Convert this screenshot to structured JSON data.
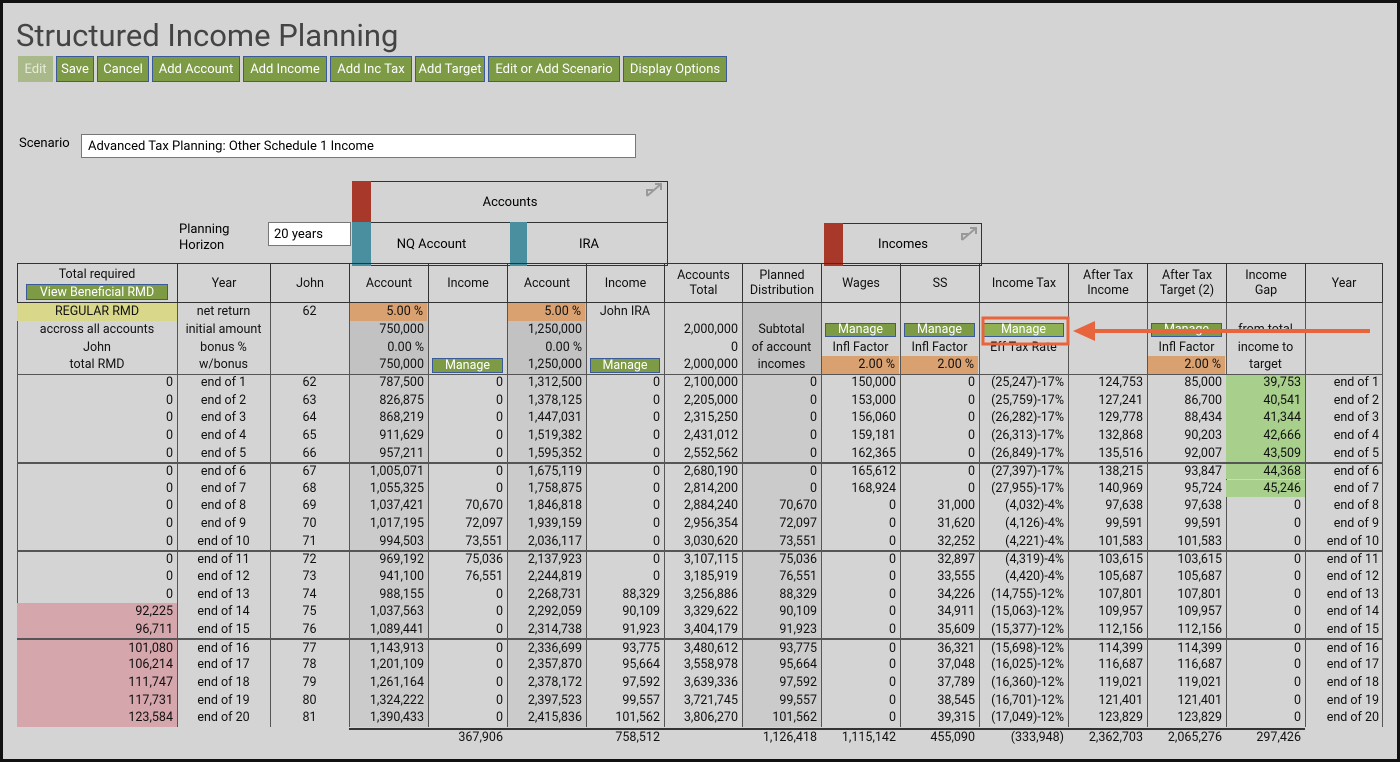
{
  "title": "Structured Income Planning",
  "buttons": [
    "Edit",
    "Save",
    "Cancel",
    "Add Account",
    "Add Income",
    "Add Inc Tax",
    "Add Target",
    "Edit or Add Scenario",
    "Display Options"
  ],
  "scenario": {
    "label": "Scenario",
    "value": "Advanced Tax Planning: Other Schedule 1 Income"
  },
  "planning_horizon": {
    "label": "Planning Horizon",
    "value": "20 years"
  },
  "groups": {
    "accounts": "Accounts",
    "nq": "NQ Account",
    "ira": "IRA",
    "incomes": "Incomes"
  },
  "table": {
    "header": [
      "Total required",
      "Year",
      "John",
      "Account",
      "Income",
      "Account",
      "Income",
      "Accounts\nTotal",
      "Planned\nDistribution",
      "Wages",
      "SS",
      "Income Tax",
      "After Tax\nIncome",
      "After Tax\nTarget (2)",
      "Income\nGap",
      "Year"
    ],
    "view_rmd_button": "View Beneficial RMD",
    "setup_rows": [
      [
        "REGULAR RMD",
        "net return",
        "62",
        "5.00 %",
        null,
        "5.00 %",
        "John IRA",
        null,
        null,
        null,
        null,
        null,
        null,
        null,
        null,
        null
      ],
      [
        "accross all accounts",
        "initial amount",
        null,
        "750,000",
        null,
        "1,250,000",
        null,
        "2,000,000",
        "Subtotal",
        "Manage",
        "Manage",
        "Manage",
        null,
        "Manage",
        "from total",
        null
      ],
      [
        "John",
        "bonus %",
        null,
        "0.00 %",
        null,
        "0.00 %",
        null,
        "0",
        "of account",
        "Infl Factor",
        "Infl Factor",
        "Eff Tax Rate",
        null,
        "Infl Factor",
        "income to",
        null
      ],
      [
        "total RMD",
        "w/bonus",
        null,
        "750,000",
        "Manage",
        "1,250,000",
        "Manage",
        "2,000,000",
        "incomes",
        "2.00 %",
        "2.00 %",
        null,
        null,
        "2.00 %",
        "target",
        null
      ]
    ],
    "rows": [
      [
        "0",
        "end of 1",
        "62",
        "787,500",
        "0",
        "1,312,500",
        "0",
        "2,100,000",
        "0",
        "150,000",
        "0",
        "(25,247)-17%",
        "124,753",
        "85,000",
        "39,753",
        "end of 1"
      ],
      [
        "0",
        "end of 2",
        "63",
        "826,875",
        "0",
        "1,378,125",
        "0",
        "2,205,000",
        "0",
        "153,000",
        "0",
        "(25,759)-17%",
        "127,241",
        "86,700",
        "40,541",
        "end of 2"
      ],
      [
        "0",
        "end of 3",
        "64",
        "868,219",
        "0",
        "1,447,031",
        "0",
        "2,315,250",
        "0",
        "156,060",
        "0",
        "(26,282)-17%",
        "129,778",
        "88,434",
        "41,344",
        "end of 3"
      ],
      [
        "0",
        "end of 4",
        "65",
        "911,629",
        "0",
        "1,519,382",
        "0",
        "2,431,012",
        "0",
        "159,181",
        "0",
        "(26,313)-17%",
        "132,868",
        "90,203",
        "42,666",
        "end of 4"
      ],
      [
        "0",
        "end of 5",
        "66",
        "957,211",
        "0",
        "1,595,352",
        "0",
        "2,552,562",
        "0",
        "162,365",
        "0",
        "(26,849)-17%",
        "135,516",
        "92,007",
        "43,509",
        "end of 5"
      ],
      [
        "0",
        "end of 6",
        "67",
        "1,005,071",
        "0",
        "1,675,119",
        "0",
        "2,680,190",
        "0",
        "165,612",
        "0",
        "(27,397)-17%",
        "138,215",
        "93,847",
        "44,368",
        "end of 6"
      ],
      [
        "0",
        "end of 7",
        "68",
        "1,055,325",
        "0",
        "1,758,875",
        "0",
        "2,814,200",
        "0",
        "168,924",
        "0",
        "(27,955)-17%",
        "140,969",
        "95,724",
        "45,246",
        "end of 7"
      ],
      [
        "0",
        "end of 8",
        "69",
        "1,037,421",
        "70,670",
        "1,846,818",
        "0",
        "2,884,240",
        "70,670",
        "0",
        "31,000",
        "(4,032)-4%",
        "97,638",
        "97,638",
        "0",
        "end of 8"
      ],
      [
        "0",
        "end of 9",
        "70",
        "1,017,195",
        "72,097",
        "1,939,159",
        "0",
        "2,956,354",
        "72,097",
        "0",
        "31,620",
        "(4,126)-4%",
        "99,591",
        "99,591",
        "0",
        "end of 9"
      ],
      [
        "0",
        "end of 10",
        "71",
        "994,503",
        "73,551",
        "2,036,117",
        "0",
        "3,030,620",
        "73,551",
        "0",
        "32,252",
        "(4,221)-4%",
        "101,583",
        "101,583",
        "0",
        "end of 10"
      ],
      [
        "0",
        "end of 11",
        "72",
        "969,192",
        "75,036",
        "2,137,923",
        "0",
        "3,107,115",
        "75,036",
        "0",
        "32,897",
        "(4,319)-4%",
        "103,615",
        "103,615",
        "0",
        "end of 11"
      ],
      [
        "0",
        "end of 12",
        "73",
        "941,100",
        "76,551",
        "2,244,819",
        "0",
        "3,185,919",
        "76,551",
        "0",
        "33,555",
        "(4,420)-4%",
        "105,687",
        "105,687",
        "0",
        "end of 12"
      ],
      [
        "0",
        "end of 13",
        "74",
        "988,155",
        "0",
        "2,268,731",
        "88,329",
        "3,256,886",
        "88,329",
        "0",
        "34,226",
        "(14,755)-12%",
        "107,801",
        "107,801",
        "0",
        "end of 13"
      ],
      [
        "92,225",
        "end of 14",
        "75",
        "1,037,563",
        "0",
        "2,292,059",
        "90,109",
        "3,329,622",
        "90,109",
        "0",
        "34,911",
        "(15,063)-12%",
        "109,957",
        "109,957",
        "0",
        "end of 14"
      ],
      [
        "96,711",
        "end of 15",
        "76",
        "1,089,441",
        "0",
        "2,314,738",
        "91,923",
        "3,404,179",
        "91,923",
        "0",
        "35,609",
        "(15,377)-12%",
        "112,156",
        "112,156",
        "0",
        "end of 15"
      ],
      [
        "101,080",
        "end of 16",
        "77",
        "1,143,913",
        "0",
        "2,336,699",
        "93,775",
        "3,480,612",
        "93,775",
        "0",
        "36,321",
        "(15,698)-12%",
        "114,399",
        "114,399",
        "0",
        "end of 16"
      ],
      [
        "106,214",
        "end of 17",
        "78",
        "1,201,109",
        "0",
        "2,357,870",
        "95,664",
        "3,558,978",
        "95,664",
        "0",
        "37,048",
        "(16,025)-12%",
        "116,687",
        "116,687",
        "0",
        "end of 17"
      ],
      [
        "111,747",
        "end of 18",
        "79",
        "1,261,164",
        "0",
        "2,378,172",
        "97,592",
        "3,639,336",
        "97,592",
        "0",
        "37,789",
        "(16,360)-12%",
        "119,021",
        "119,021",
        "0",
        "end of 18"
      ],
      [
        "117,731",
        "end of 19",
        "80",
        "1,324,222",
        "0",
        "2,397,523",
        "99,557",
        "3,721,745",
        "99,557",
        "0",
        "38,545",
        "(16,701)-12%",
        "121,401",
        "121,401",
        "0",
        "end of 19"
      ],
      [
        "123,584",
        "end of 20",
        "81",
        "1,390,433",
        "0",
        "2,415,836",
        "101,562",
        "3,806,270",
        "101,562",
        "0",
        "39,315",
        "(17,049)-12%",
        "123,829",
        "123,829",
        "0",
        "end of 20"
      ]
    ],
    "totals": [
      null,
      null,
      null,
      null,
      "367,906",
      null,
      "758,512",
      null,
      "1,126,418",
      "1,115,142",
      "455,090",
      "(333,948)",
      "2,362,703",
      "2,065,276",
      "297,426",
      null
    ]
  }
}
